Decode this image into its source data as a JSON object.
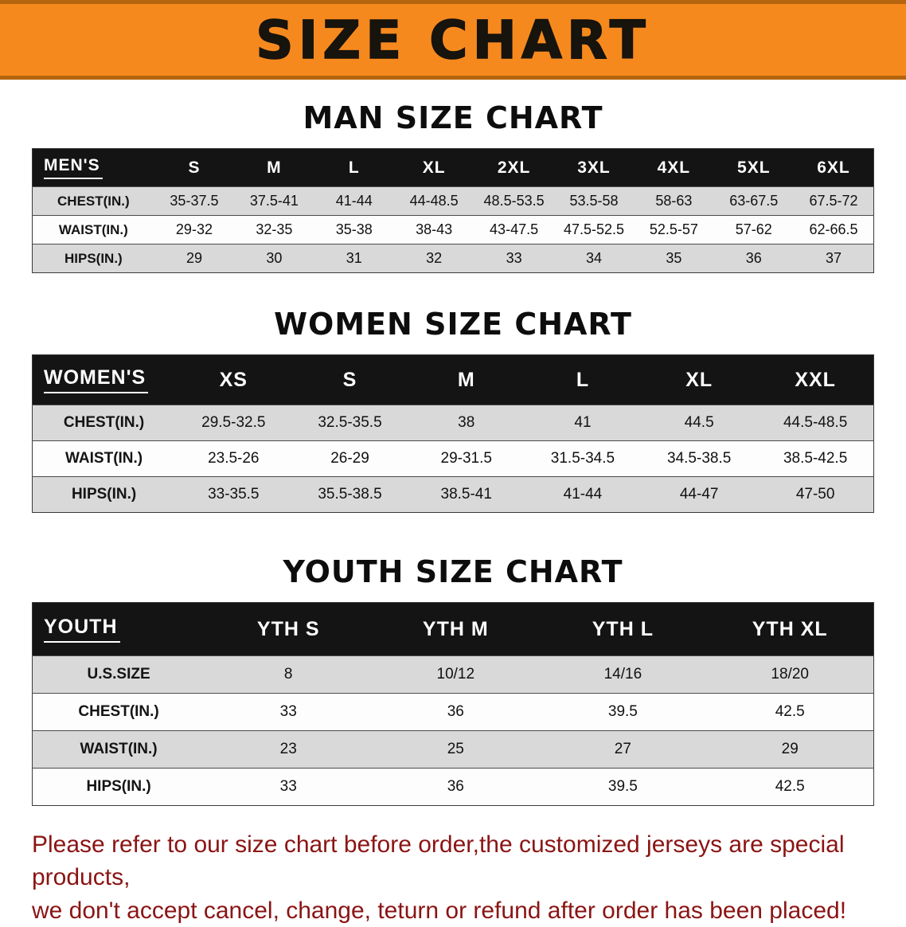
{
  "banner": {
    "title": "SIZE CHART"
  },
  "colors": {
    "banner_bg": "#F6891E",
    "banner_edge": "#B4650E",
    "header_bg": "#141414",
    "row_gray": "#D9D9D9",
    "footer_red": "#8B1414"
  },
  "sections": [
    {
      "title": "MAN SIZE CHART",
      "table": {
        "header": [
          "MEN'S",
          "S",
          "M",
          "L",
          "XL",
          "2XL",
          "3XL",
          "4XL",
          "5XL",
          "6XL"
        ],
        "rows": [
          [
            "CHEST(IN.)",
            "35-37.5",
            "37.5-41",
            "41-44",
            "44-48.5",
            "48.5-53.5",
            "53.5-58",
            "58-63",
            "63-67.5",
            "67.5-72"
          ],
          [
            "WAIST(IN.)",
            "29-32",
            "32-35",
            "35-38",
            "38-43",
            "43-47.5",
            "47.5-52.5",
            "52.5-57",
            "57-62",
            "62-66.5"
          ],
          [
            "HIPS(IN.)",
            "29",
            "30",
            "31",
            "32",
            "33",
            "34",
            "35",
            "36",
            "37"
          ]
        ]
      }
    },
    {
      "title": "WOMEN SIZE CHART",
      "table": {
        "header": [
          "WOMEN'S",
          "XS",
          "S",
          "M",
          "L",
          "XL",
          "XXL"
        ],
        "rows": [
          [
            "CHEST(IN.)",
            "29.5-32.5",
            "32.5-35.5",
            "38",
            "41",
            "44.5",
            "44.5-48.5"
          ],
          [
            "WAIST(IN.)",
            "23.5-26",
            "26-29",
            "29-31.5",
            "31.5-34.5",
            "34.5-38.5",
            "38.5-42.5"
          ],
          [
            "HIPS(IN.)",
            "33-35.5",
            "35.5-38.5",
            "38.5-41",
            "41-44",
            "44-47",
            "47-50"
          ]
        ]
      }
    },
    {
      "title": "YOUTH SIZE CHART",
      "table": {
        "header": [
          "YOUTH",
          "YTH S",
          "YTH M",
          "YTH L",
          "YTH XL"
        ],
        "rows": [
          [
            "U.S.SIZE",
            "8",
            "10/12",
            "14/16",
            "18/20"
          ],
          [
            "CHEST(IN.)",
            "33",
            "36",
            "39.5",
            "42.5"
          ],
          [
            "WAIST(IN.)",
            "23",
            "25",
            "27",
            "29"
          ],
          [
            "HIPS(IN.)",
            "33",
            "36",
            "39.5",
            "42.5"
          ]
        ]
      }
    }
  ],
  "footer": {
    "line1": "Please refer to our size chart before order,the customized jerseys are special products,",
    "line2": "we don't accept cancel, change, teturn or refund after order has been placed!"
  }
}
